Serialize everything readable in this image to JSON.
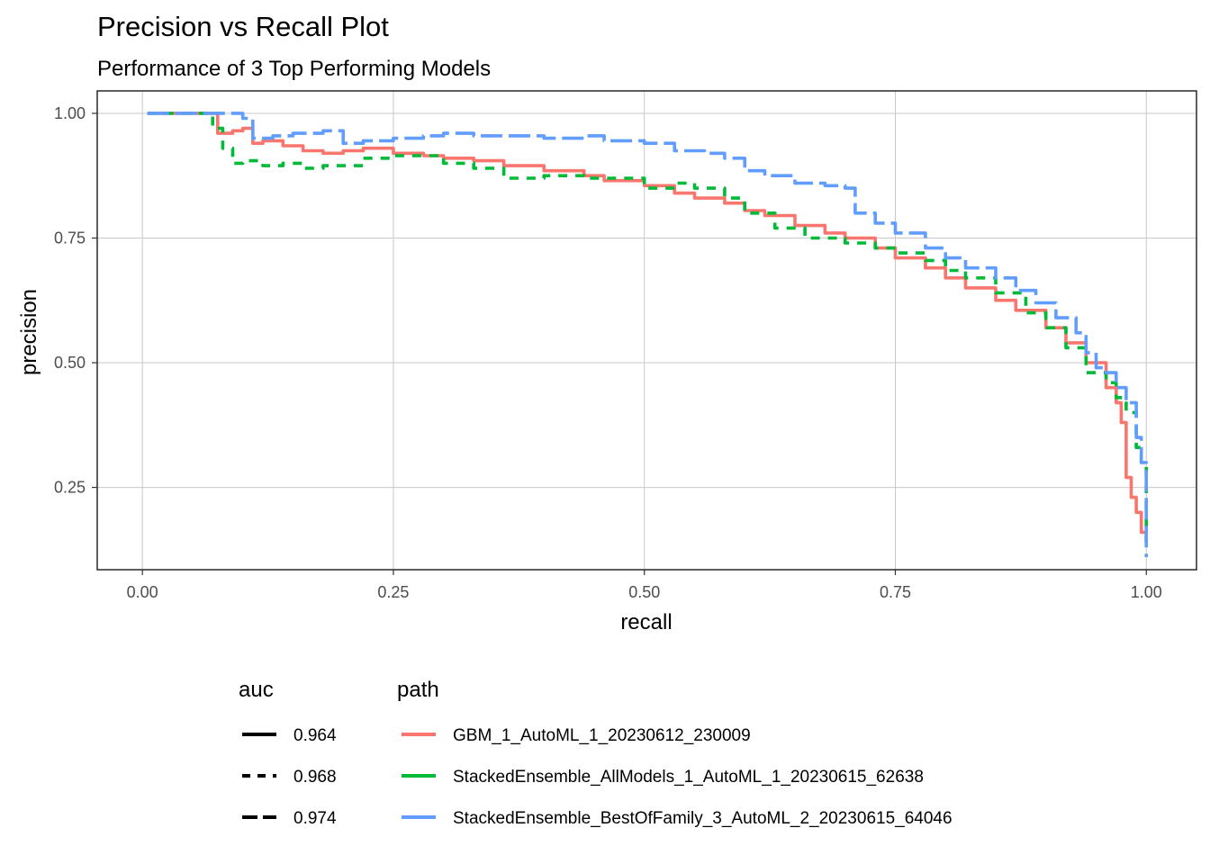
{
  "chart_data": {
    "type": "line",
    "title": "Precision vs Recall Plot",
    "subtitle": "Performance of 3 Top Performing Models",
    "xlabel": "recall",
    "ylabel": "precision",
    "xlim": [
      -0.045,
      1.05
    ],
    "ylim": [
      0.085,
      1.045
    ],
    "x_ticks": [
      0.0,
      0.25,
      0.5,
      0.75,
      1.0
    ],
    "x_tick_labels": [
      "0.00",
      "0.25",
      "0.50",
      "0.75",
      "1.00"
    ],
    "y_ticks": [
      0.25,
      0.5,
      0.75,
      1.0
    ],
    "y_tick_labels": [
      "0.25",
      "0.50",
      "0.75",
      "1.00"
    ],
    "grid": true,
    "legend_position": "bottom",
    "legend": {
      "auc_title": "auc",
      "path_title": "path",
      "auc_entries": [
        {
          "label": "0.964",
          "linetype": "solid"
        },
        {
          "label": "0.968",
          "linetype": "dashed"
        },
        {
          "label": "0.974",
          "linetype": "longdash"
        }
      ],
      "path_entries": [
        {
          "label": "GBM_1_AutoML_1_20230612_230009",
          "color": "#F8766D"
        },
        {
          "label": "StackedEnsemble_AllModels_1_AutoML_1_20230615_62638",
          "color": "#00BA38"
        },
        {
          "label": "StackedEnsemble_BestOfFamily_3_AutoML_2_20230615_64046",
          "color": "#619CFF"
        }
      ]
    },
    "series": [
      {
        "name": "GBM_1_AutoML_1_20230612_230009",
        "auc": "0.964",
        "color": "#F8766D",
        "linetype": "solid",
        "x": [
          0.005,
          0.06,
          0.075,
          0.09,
          0.1,
          0.11,
          0.12,
          0.14,
          0.16,
          0.18,
          0.2,
          0.22,
          0.25,
          0.28,
          0.3,
          0.33,
          0.36,
          0.4,
          0.44,
          0.46,
          0.5,
          0.53,
          0.55,
          0.58,
          0.6,
          0.62,
          0.65,
          0.68,
          0.7,
          0.73,
          0.75,
          0.78,
          0.8,
          0.82,
          0.85,
          0.87,
          0.9,
          0.92,
          0.94,
          0.96,
          0.97,
          0.975,
          0.98,
          0.985,
          0.99,
          0.995,
          1.0
        ],
        "y": [
          1.0,
          1.0,
          0.96,
          0.965,
          0.97,
          0.94,
          0.945,
          0.935,
          0.925,
          0.92,
          0.925,
          0.93,
          0.92,
          0.915,
          0.91,
          0.905,
          0.895,
          0.885,
          0.875,
          0.865,
          0.855,
          0.84,
          0.83,
          0.82,
          0.805,
          0.795,
          0.775,
          0.76,
          0.75,
          0.73,
          0.71,
          0.69,
          0.67,
          0.65,
          0.625,
          0.605,
          0.57,
          0.54,
          0.5,
          0.45,
          0.42,
          0.38,
          0.27,
          0.23,
          0.2,
          0.16,
          0.14
        ]
      },
      {
        "name": "StackedEnsemble_AllModels_1_AutoML_1_20230615_62638",
        "auc": "0.968",
        "color": "#00BA38",
        "linetype": "dashed",
        "x": [
          0.005,
          0.06,
          0.07,
          0.08,
          0.09,
          0.1,
          0.12,
          0.14,
          0.16,
          0.18,
          0.22,
          0.25,
          0.3,
          0.33,
          0.36,
          0.4,
          0.44,
          0.47,
          0.5,
          0.53,
          0.55,
          0.58,
          0.6,
          0.63,
          0.66,
          0.7,
          0.73,
          0.75,
          0.78,
          0.8,
          0.82,
          0.85,
          0.88,
          0.9,
          0.92,
          0.94,
          0.96,
          0.97,
          0.98,
          0.99,
          0.995,
          1.0
        ],
        "y": [
          1.0,
          1.0,
          0.97,
          0.93,
          0.9,
          0.905,
          0.895,
          0.9,
          0.89,
          0.895,
          0.91,
          0.915,
          0.9,
          0.89,
          0.87,
          0.875,
          0.87,
          0.87,
          0.85,
          0.86,
          0.85,
          0.83,
          0.8,
          0.77,
          0.75,
          0.74,
          0.73,
          0.72,
          0.705,
          0.685,
          0.67,
          0.64,
          0.6,
          0.57,
          0.53,
          0.48,
          0.46,
          0.43,
          0.4,
          0.33,
          0.3,
          0.14
        ]
      },
      {
        "name": "StackedEnsemble_BestOfFamily_3_AutoML_2_20230615_64046",
        "auc": "0.974",
        "color": "#619CFF",
        "linetype": "longdash",
        "x": [
          0.005,
          0.08,
          0.1,
          0.11,
          0.13,
          0.15,
          0.18,
          0.2,
          0.22,
          0.25,
          0.28,
          0.3,
          0.33,
          0.36,
          0.4,
          0.44,
          0.46,
          0.5,
          0.53,
          0.56,
          0.58,
          0.6,
          0.62,
          0.65,
          0.68,
          0.7,
          0.71,
          0.73,
          0.75,
          0.78,
          0.8,
          0.82,
          0.85,
          0.87,
          0.89,
          0.91,
          0.93,
          0.94,
          0.95,
          0.96,
          0.97,
          0.98,
          0.99,
          0.995,
          1.0
        ],
        "y": [
          1.0,
          1.0,
          0.99,
          0.95,
          0.955,
          0.96,
          0.965,
          0.94,
          0.945,
          0.95,
          0.955,
          0.96,
          0.955,
          0.955,
          0.95,
          0.955,
          0.945,
          0.94,
          0.925,
          0.92,
          0.91,
          0.885,
          0.875,
          0.86,
          0.855,
          0.85,
          0.8,
          0.78,
          0.76,
          0.73,
          0.71,
          0.69,
          0.67,
          0.645,
          0.62,
          0.59,
          0.56,
          0.52,
          0.49,
          0.48,
          0.45,
          0.42,
          0.35,
          0.3,
          0.11
        ]
      }
    ]
  }
}
